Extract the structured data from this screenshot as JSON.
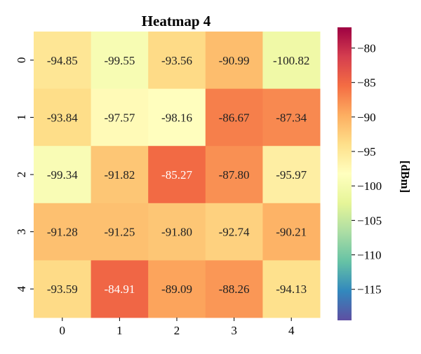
{
  "chart_data": {
    "type": "heatmap",
    "title": "Heatmap 4",
    "x_categories": [
      "0",
      "1",
      "2",
      "3",
      "4"
    ],
    "y_categories": [
      "0",
      "1",
      "2",
      "3",
      "4"
    ],
    "values": [
      [
        -94.85,
        -99.55,
        -93.56,
        -90.99,
        -100.82
      ],
      [
        -93.84,
        -97.57,
        -98.16,
        -86.67,
        -87.34
      ],
      [
        -99.34,
        -91.82,
        -85.27,
        -87.8,
        -95.97
      ],
      [
        -91.28,
        -91.25,
        -91.8,
        -92.74,
        -90.21
      ],
      [
        -93.59,
        -84.91,
        -89.09,
        -88.26,
        -94.13
      ]
    ],
    "value_labels": [
      [
        "-94.85",
        "-99.55",
        "-93.56",
        "-90.99",
        "-100.82"
      ],
      [
        "-93.84",
        "-97.57",
        "-98.16",
        "-86.67",
        "-87.34"
      ],
      [
        "-99.34",
        "-91.82",
        "-85.27",
        "-87.80",
        "-95.97"
      ],
      [
        "-91.28",
        "-91.25",
        "-91.80",
        "-92.74",
        "-90.21"
      ],
      [
        "-93.59",
        "-84.91",
        "-89.09",
        "-88.26",
        "-94.13"
      ]
    ],
    "colorbar": {
      "label": "[dBm]",
      "range": [
        -119.5,
        -77
      ],
      "ticks": [
        -80,
        -85,
        -90,
        -95,
        -100,
        -105,
        -110,
        -115
      ],
      "tick_labels": [
        "−80",
        "−85",
        "−90",
        "−95",
        "−100",
        "−105",
        "−110",
        "−115"
      ],
      "colormap": "Spectral_r"
    },
    "xlabel": "",
    "ylabel": ""
  }
}
